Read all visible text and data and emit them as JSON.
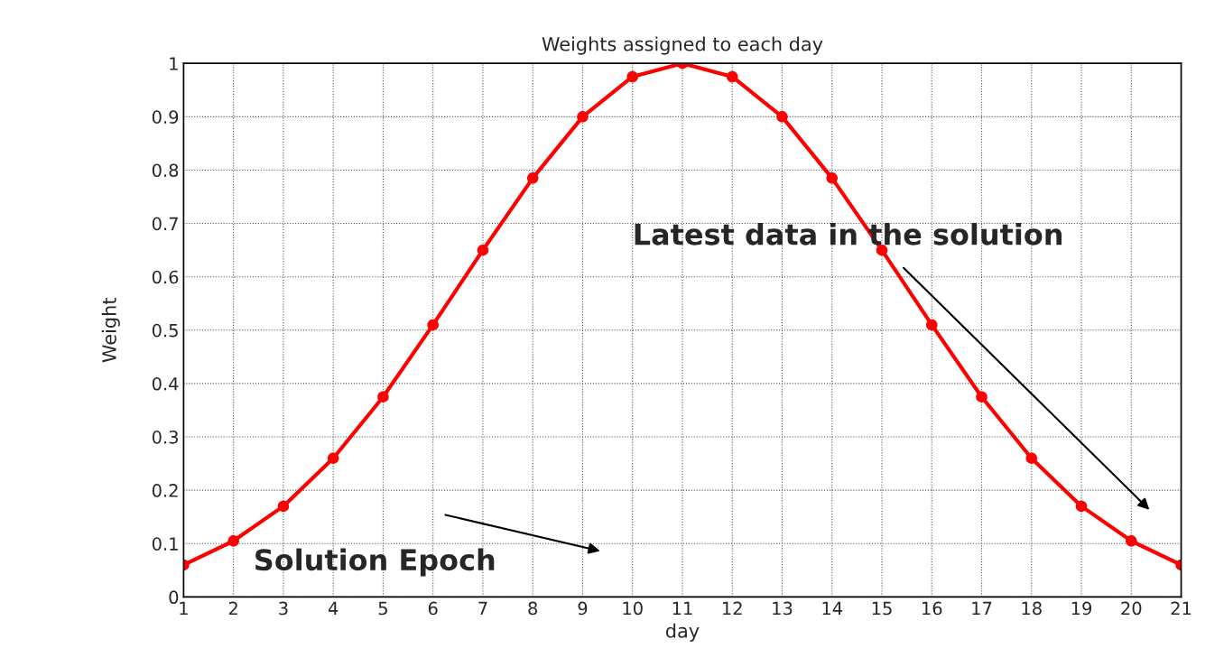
{
  "chart_data": {
    "type": "line",
    "title": "Weights assigned to each day",
    "xlabel": "day",
    "ylabel": "Weight",
    "x": [
      1,
      2,
      3,
      4,
      5,
      6,
      7,
      8,
      9,
      10,
      11,
      12,
      13,
      14,
      15,
      16,
      17,
      18,
      19,
      20,
      21
    ],
    "series": [
      {
        "color": "#ff0000",
        "values": [
          0.06,
          0.105,
          0.17,
          0.26,
          0.375,
          0.51,
          0.65,
          0.785,
          0.9,
          0.975,
          1.0,
          0.975,
          0.9,
          0.785,
          0.65,
          0.51,
          0.375,
          0.26,
          0.17,
          0.105,
          0.06
        ]
      }
    ],
    "xlim": [
      1,
      21
    ],
    "xticks": [
      1,
      2,
      3,
      4,
      5,
      6,
      7,
      8,
      9,
      10,
      11,
      12,
      13,
      14,
      15,
      16,
      17,
      18,
      19,
      20,
      21
    ],
    "ylim": [
      0,
      1
    ],
    "yticks": [
      0,
      0.1,
      0.2,
      0.3,
      0.4,
      0.5,
      0.6,
      0.7,
      0.8,
      0.9,
      1
    ],
    "grid": true,
    "marker": "circle",
    "line_style": "solid",
    "annotations": [
      "Latest data in the solution",
      "Solution Epoch"
    ]
  }
}
